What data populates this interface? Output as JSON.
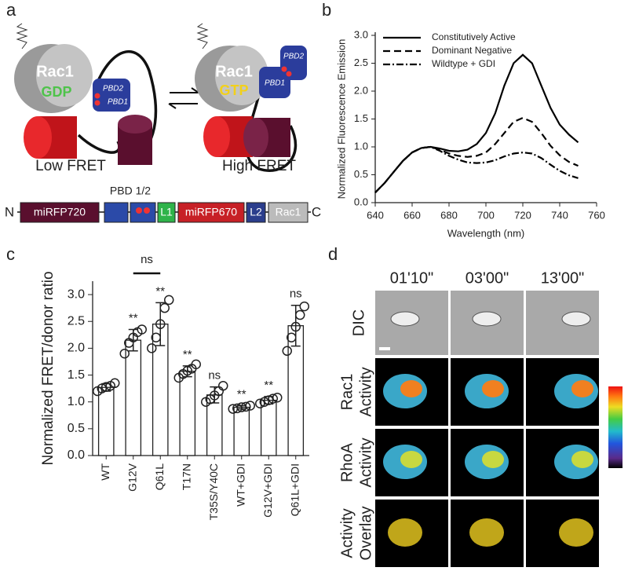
{
  "panel_labels": [
    "a",
    "b",
    "c",
    "d"
  ],
  "panel_a": {
    "states": [
      {
        "protein": "Rac1",
        "nucleotide": "GDP",
        "domains": [
          "PBD2",
          "PBD1"
        ],
        "label": "Low FRET"
      },
      {
        "protein": "Rac1",
        "nucleotide": "GTP",
        "domains": [
          "PBD1",
          "PBD2"
        ],
        "label": "High FRET"
      }
    ],
    "construct": [
      "N",
      "miRFP720",
      "PBD 1/2",
      "L1",
      "miRFP670",
      "L2",
      "Rac1",
      "C"
    ]
  },
  "chart_data": [
    {
      "type": "line",
      "xlabel": "Wavelength (nm)",
      "ylabel": "Normalized Fluorescence Emission",
      "x": [
        640,
        645,
        650,
        655,
        660,
        665,
        670,
        675,
        680,
        685,
        690,
        695,
        700,
        705,
        710,
        715,
        720,
        725,
        730,
        735,
        740,
        745,
        750
      ],
      "series": [
        {
          "name": "Constitutively Active",
          "color": "#000000",
          "dash": "none",
          "values": [
            0.18,
            0.35,
            0.55,
            0.75,
            0.9,
            0.98,
            1.0,
            0.97,
            0.93,
            0.92,
            0.95,
            1.05,
            1.25,
            1.6,
            2.1,
            2.5,
            2.65,
            2.5,
            2.1,
            1.7,
            1.4,
            1.22,
            1.08
          ]
        },
        {
          "name": "Dominant Negative",
          "color": "#000000",
          "dash": "9,5",
          "values": [
            0.18,
            0.35,
            0.55,
            0.75,
            0.9,
            0.98,
            1.0,
            0.95,
            0.88,
            0.84,
            0.82,
            0.84,
            0.9,
            1.05,
            1.25,
            1.45,
            1.52,
            1.45,
            1.25,
            1.02,
            0.85,
            0.73,
            0.66
          ]
        },
        {
          "name": "Wildtype + GDI",
          "color": "#000000",
          "dash": "9,3,2,3",
          "values": [
            0.18,
            0.35,
            0.55,
            0.75,
            0.9,
            0.98,
            1.0,
            0.93,
            0.84,
            0.77,
            0.72,
            0.71,
            0.72,
            0.76,
            0.83,
            0.88,
            0.9,
            0.88,
            0.8,
            0.68,
            0.57,
            0.49,
            0.44
          ]
        }
      ],
      "xlim": [
        640,
        760
      ],
      "xticks": [
        640,
        660,
        680,
        700,
        720,
        740,
        760
      ],
      "ylim": [
        0,
        3
      ],
      "yticks": [
        {
          "value": 0,
          "label": "0.0"
        },
        0.5,
        {
          "value": 1,
          "label": "1.0"
        },
        1.5,
        {
          "value": 2,
          "label": "2.0"
        },
        2.5,
        {
          "value": 3,
          "label": "3.0"
        }
      ],
      "legend": "top-left"
    },
    {
      "type": "bar",
      "ylabel": "Normalized FRET/donor ratio",
      "categories": [
        "WT",
        "G12V",
        "Q61L",
        "T17N",
        "T35S/Y40C",
        "WT+GDI",
        "G12V+GDI",
        "Q61L+GDI"
      ],
      "values": [
        1.27,
        2.15,
        2.45,
        1.57,
        1.13,
        0.9,
        1.03,
        2.42
      ],
      "errors": [
        0.07,
        0.2,
        0.4,
        0.1,
        0.15,
        0.03,
        0.07,
        0.38
      ],
      "points": [
        [
          1.2,
          1.25,
          1.28,
          1.3,
          1.35
        ],
        [
          1.9,
          2.1,
          2.2,
          2.3,
          2.35
        ],
        [
          2.0,
          2.2,
          2.45,
          2.75,
          2.9
        ],
        [
          1.45,
          1.52,
          1.58,
          1.62,
          1.7
        ],
        [
          1.0,
          1.05,
          1.12,
          1.2,
          1.3
        ],
        [
          0.87,
          0.88,
          0.9,
          0.91,
          0.93
        ],
        [
          0.97,
          1.0,
          1.03,
          1.06,
          1.08
        ],
        [
          1.95,
          2.2,
          2.4,
          2.62,
          2.78
        ]
      ],
      "annotations": [
        null,
        "**",
        "**",
        "**",
        "ns",
        "**",
        "**",
        "ns"
      ],
      "bracket_label": "ns",
      "color": "#ffffff",
      "ylim": [
        0,
        3.25
      ],
      "yticks": [
        {
          "value": 0,
          "label": "0.0"
        },
        0.5,
        {
          "value": 1,
          "label": "1.0"
        },
        1.5,
        {
          "value": 2,
          "label": "2.0"
        },
        2.5,
        {
          "value": 3,
          "label": "3.0"
        }
      ]
    }
  ],
  "panel_d": {
    "times": [
      "01'10\"",
      "03'00\"",
      "13'00\""
    ],
    "rows": [
      [
        "DIC"
      ],
      [
        "Rac1",
        "Activity"
      ],
      [
        "RhoA",
        "Activity"
      ],
      [
        "Activity",
        "Overlay"
      ]
    ]
  }
}
